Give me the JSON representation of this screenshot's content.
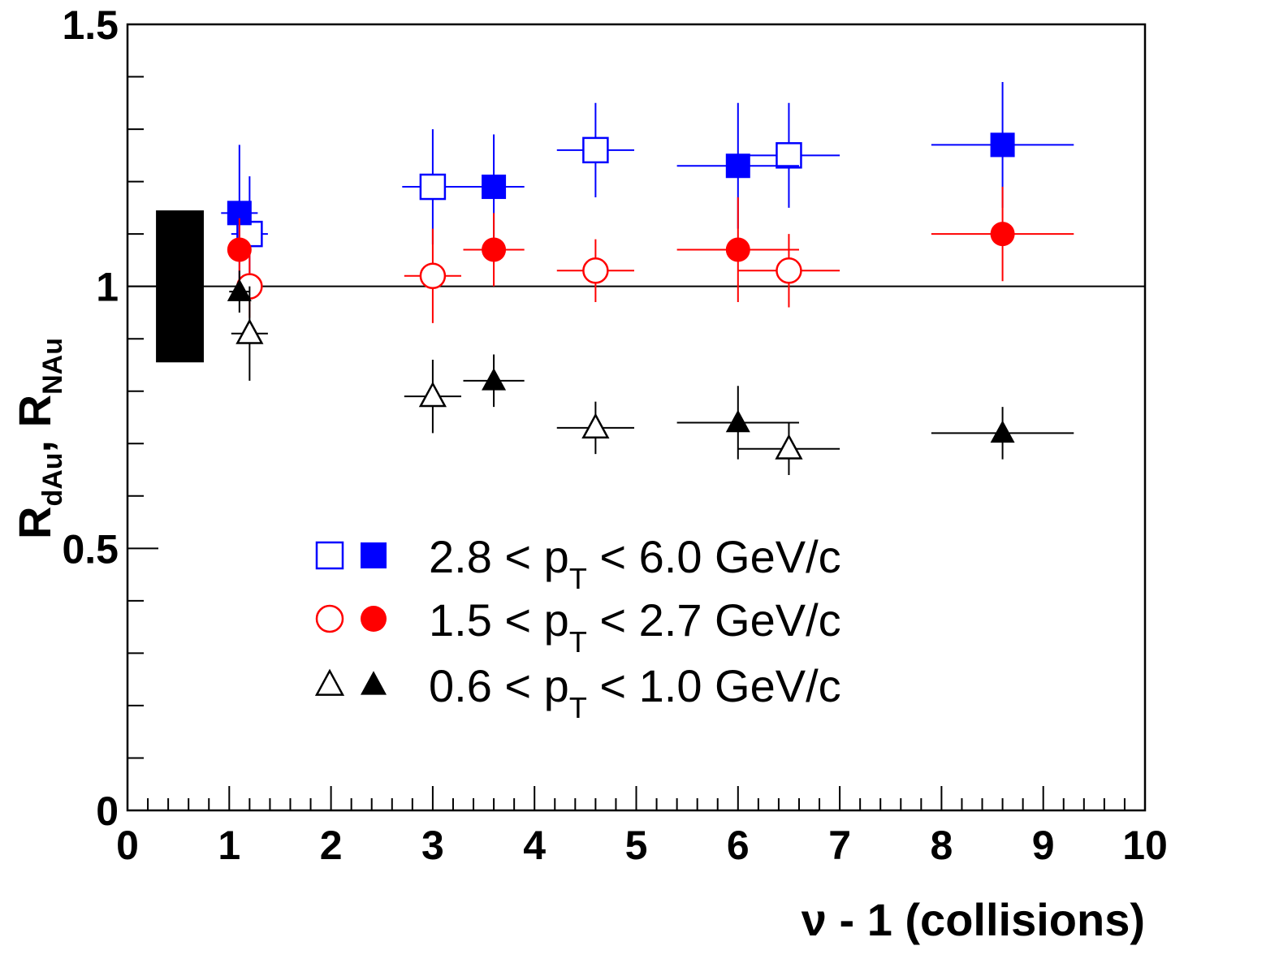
{
  "chart_data": {
    "type": "scatter",
    "xlabel": "ν - 1 (collisions)",
    "ylabel": {
      "main_1": "R",
      "sub_1": "dAu",
      "sep": ", ",
      "main_2": "R",
      "sub_2": "NAu"
    },
    "xlim": [
      0,
      10
    ],
    "ylim": [
      0,
      1.5
    ],
    "x_ticks": [
      "0",
      "1",
      "2",
      "3",
      "4",
      "5",
      "6",
      "7",
      "8",
      "9",
      "10"
    ],
    "y_ticks": [
      "0",
      "0.5",
      "1",
      "1.5"
    ],
    "reference_line": 1.0,
    "systematic_band": {
      "x": [
        0.28,
        0.75
      ],
      "y": [
        0.855,
        1.145
      ],
      "color": "#000000"
    },
    "legend": {
      "position": "center",
      "entries": [
        {
          "pre": "2.8 < p",
          "sub": "T",
          "post": " < 6.0 GeV/c",
          "color": "#0000ff",
          "marker": "square"
        },
        {
          "pre": "1.5 < p",
          "sub": "T",
          "post": " < 2.7 GeV/c",
          "color": "#ff0000",
          "marker": "circle"
        },
        {
          "pre": "0.6 < p",
          "sub": "T",
          "post": " < 1.0 GeV/c",
          "color": "#000000",
          "marker": "triangle"
        }
      ]
    },
    "series": [
      {
        "color": "#0000ff",
        "marker": "square",
        "filled": false,
        "points": [
          {
            "x": 1.2,
            "y": 1.1,
            "xerr": 0.18,
            "yerr": 0.11
          },
          {
            "x": 3.0,
            "y": 1.19,
            "xerr": 0.3,
            "yerr": 0.11
          },
          {
            "x": 4.6,
            "y": 1.26,
            "xerr": 0.38,
            "yerr": 0.09
          },
          {
            "x": 6.5,
            "y": 1.25,
            "xerr": 0.5,
            "yerr": 0.1
          }
        ]
      },
      {
        "color": "#0000ff",
        "marker": "square",
        "filled": true,
        "points": [
          {
            "x": 1.1,
            "y": 1.14,
            "xerr": 0.18,
            "yerr": 0.13
          },
          {
            "x": 3.6,
            "y": 1.19,
            "xerr": 0.3,
            "yerr": 0.1
          },
          {
            "x": 6.0,
            "y": 1.23,
            "xerr": 0.6,
            "yerr": 0.12
          },
          {
            "x": 8.6,
            "y": 1.27,
            "xerr": 0.7,
            "yerr": 0.12
          }
        ]
      },
      {
        "color": "#ff0000",
        "marker": "circle",
        "filled": false,
        "points": [
          {
            "x": 1.2,
            "y": 1.0,
            "xerr": 0.1,
            "yerr": 0.06
          },
          {
            "x": 3.0,
            "y": 1.02,
            "xerr": 0.28,
            "yerr": 0.09
          },
          {
            "x": 4.6,
            "y": 1.03,
            "xerr": 0.38,
            "yerr": 0.06
          },
          {
            "x": 6.5,
            "y": 1.03,
            "xerr": 0.5,
            "yerr": 0.07
          }
        ]
      },
      {
        "color": "#ff0000",
        "marker": "circle",
        "filled": true,
        "points": [
          {
            "x": 1.1,
            "y": 1.07,
            "xerr": 0.1,
            "yerr": 0.06
          },
          {
            "x": 3.6,
            "y": 1.07,
            "xerr": 0.3,
            "yerr": 0.07
          },
          {
            "x": 6.0,
            "y": 1.07,
            "xerr": 0.6,
            "yerr": 0.1
          },
          {
            "x": 8.6,
            "y": 1.1,
            "xerr": 0.7,
            "yerr": 0.09
          }
        ]
      },
      {
        "color": "#000000",
        "marker": "triangle",
        "filled": false,
        "points": [
          {
            "x": 1.2,
            "y": 0.91,
            "xerr": 0.18,
            "yerr": 0.09
          },
          {
            "x": 3.0,
            "y": 0.79,
            "xerr": 0.28,
            "yerr": 0.07
          },
          {
            "x": 4.6,
            "y": 0.73,
            "xerr": 0.38,
            "yerr": 0.05
          },
          {
            "x": 6.5,
            "y": 0.69,
            "xerr": 0.5,
            "yerr": 0.05
          }
        ]
      },
      {
        "color": "#000000",
        "marker": "triangle",
        "filled": true,
        "points": [
          {
            "x": 1.1,
            "y": 0.99,
            "xerr": 0.1,
            "yerr": 0.04
          },
          {
            "x": 3.6,
            "y": 0.82,
            "xerr": 0.3,
            "yerr": 0.05
          },
          {
            "x": 6.0,
            "y": 0.74,
            "xerr": 0.6,
            "yerr": 0.07
          },
          {
            "x": 8.6,
            "y": 0.72,
            "xerr": 0.7,
            "yerr": 0.05
          }
        ]
      }
    ]
  }
}
